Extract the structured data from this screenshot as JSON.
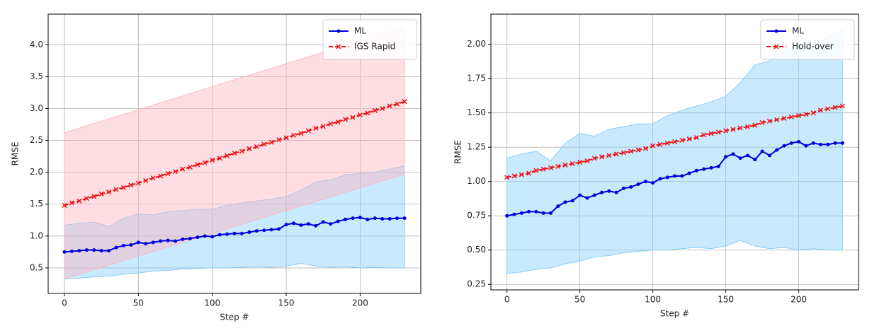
{
  "chart_data": [
    {
      "type": "line",
      "xlabel": "Step #",
      "ylabel": "RMSE",
      "grid": true,
      "legend": "upper right",
      "xlim": [
        -11,
        241
      ],
      "ylim": [
        0.1,
        4.48
      ],
      "xticks": [
        0,
        50,
        100,
        150,
        200
      ],
      "yticks": [
        0.5,
        {
          "value": 1.0,
          "label": "1.0"
        },
        1.5,
        {
          "value": 2.0,
          "label": "2.0"
        },
        2.5,
        {
          "value": 3.0,
          "label": "3.0"
        },
        3.5,
        {
          "value": 4.0,
          "label": "4.0"
        }
      ],
      "x": [
        0,
        5,
        10,
        15,
        20,
        25,
        30,
        35,
        40,
        45,
        50,
        55,
        60,
        65,
        70,
        75,
        80,
        85,
        90,
        95,
        100,
        105,
        110,
        115,
        120,
        125,
        130,
        135,
        140,
        145,
        150,
        155,
        160,
        165,
        170,
        175,
        180,
        185,
        190,
        195,
        200,
        205,
        210,
        215,
        220,
        225,
        230
      ],
      "series": [
        {
          "name": "ML",
          "color": "#0000dd",
          "marker": "dot",
          "values": [
            0.75,
            0.76,
            0.77,
            0.78,
            0.78,
            0.77,
            0.77,
            0.82,
            0.85,
            0.86,
            0.9,
            0.88,
            0.9,
            0.92,
            0.93,
            0.92,
            0.95,
            0.96,
            0.98,
            1.0,
            0.99,
            1.02,
            1.03,
            1.04,
            1.04,
            1.06,
            1.08,
            1.09,
            1.1,
            1.11,
            1.18,
            1.2,
            1.17,
            1.19,
            1.16,
            1.22,
            1.19,
            1.23,
            1.26,
            1.28,
            1.29,
            1.26,
            1.28,
            1.27,
            1.27,
            1.28,
            1.28
          ]
        },
        {
          "name": "IGS Rapid",
          "color": "#ee1111",
          "marker": "x",
          "values": [
            1.48,
            1.52,
            1.55,
            1.59,
            1.62,
            1.66,
            1.69,
            1.73,
            1.76,
            1.8,
            1.83,
            1.87,
            1.91,
            1.94,
            1.98,
            2.01,
            2.05,
            2.08,
            2.12,
            2.15,
            2.19,
            2.22,
            2.26,
            2.3,
            2.33,
            2.37,
            2.4,
            2.44,
            2.47,
            2.51,
            2.54,
            2.58,
            2.61,
            2.65,
            2.69,
            2.72,
            2.76,
            2.79,
            2.83,
            2.86,
            2.9,
            2.93,
            2.97,
            3.0,
            3.04,
            3.07,
            3.11
          ]
        }
      ],
      "bands": [
        {
          "color": "#87cefa",
          "x": [
            0,
            10,
            20,
            30,
            40,
            50,
            60,
            70,
            80,
            90,
            100,
            110,
            120,
            130,
            140,
            150,
            160,
            170,
            180,
            190,
            200,
            210,
            220,
            230
          ],
          "lower": [
            0.33,
            0.34,
            0.36,
            0.37,
            0.4,
            0.42,
            0.45,
            0.46,
            0.48,
            0.49,
            0.5,
            0.5,
            0.51,
            0.52,
            0.51,
            0.53,
            0.57,
            0.53,
            0.51,
            0.52,
            0.5,
            0.51,
            0.5,
            0.5
          ],
          "upper": [
            1.17,
            1.2,
            1.22,
            1.15,
            1.28,
            1.35,
            1.33,
            1.38,
            1.4,
            1.42,
            1.42,
            1.48,
            1.52,
            1.55,
            1.58,
            1.62,
            1.72,
            1.85,
            1.88,
            1.96,
            1.98,
            2.0,
            2.05,
            2.1
          ]
        },
        {
          "color": "#ffb6c1",
          "x": [
            0,
            230
          ],
          "lower": [
            0.33,
            1.97
          ],
          "upper": [
            2.62,
            4.28
          ]
        }
      ]
    },
    {
      "type": "line",
      "xlabel": "Step #",
      "ylabel": "RMSE",
      "grid": true,
      "legend": "upper right",
      "xlim": [
        -11,
        241
      ],
      "ylim": [
        0.21,
        2.22
      ],
      "xticks": [
        0,
        50,
        100,
        150,
        200
      ],
      "yticks": [
        0.25,
        {
          "value": 0.5,
          "label": "0.50"
        },
        0.75,
        {
          "value": 1.0,
          "label": "1.00"
        },
        1.25,
        {
          "value": 1.5,
          "label": "1.50"
        },
        1.75,
        {
          "value": 2.0,
          "label": "2.00"
        }
      ],
      "x": [
        0,
        5,
        10,
        15,
        20,
        25,
        30,
        35,
        40,
        45,
        50,
        55,
        60,
        65,
        70,
        75,
        80,
        85,
        90,
        95,
        100,
        105,
        110,
        115,
        120,
        125,
        130,
        135,
        140,
        145,
        150,
        155,
        160,
        165,
        170,
        175,
        180,
        185,
        190,
        195,
        200,
        205,
        210,
        215,
        220,
        225,
        230
      ],
      "series": [
        {
          "name": "ML",
          "color": "#0000dd",
          "marker": "dot",
          "values": [
            0.75,
            0.76,
            0.77,
            0.78,
            0.78,
            0.77,
            0.77,
            0.82,
            0.85,
            0.86,
            0.9,
            0.88,
            0.9,
            0.92,
            0.93,
            0.92,
            0.95,
            0.96,
            0.98,
            1.0,
            0.99,
            1.02,
            1.03,
            1.04,
            1.04,
            1.06,
            1.08,
            1.09,
            1.1,
            1.11,
            1.18,
            1.2,
            1.17,
            1.19,
            1.16,
            1.22,
            1.19,
            1.23,
            1.26,
            1.28,
            1.29,
            1.26,
            1.28,
            1.27,
            1.27,
            1.28,
            1.28
          ]
        },
        {
          "name": "Hold-over",
          "color": "#ee1111",
          "marker": "x",
          "values": [
            1.03,
            1.04,
            1.05,
            1.06,
            1.08,
            1.09,
            1.1,
            1.11,
            1.12,
            1.13,
            1.14,
            1.15,
            1.17,
            1.18,
            1.19,
            1.2,
            1.21,
            1.22,
            1.23,
            1.24,
            1.26,
            1.27,
            1.28,
            1.29,
            1.3,
            1.31,
            1.32,
            1.34,
            1.35,
            1.36,
            1.37,
            1.38,
            1.39,
            1.4,
            1.41,
            1.43,
            1.44,
            1.45,
            1.46,
            1.47,
            1.48,
            1.49,
            1.5,
            1.52,
            1.53,
            1.54,
            1.55
          ]
        }
      ],
      "bands": [
        {
          "color": "#87cefa",
          "x": [
            0,
            10,
            20,
            30,
            40,
            50,
            60,
            70,
            80,
            90,
            100,
            110,
            120,
            130,
            140,
            150,
            160,
            170,
            180,
            190,
            200,
            210,
            220,
            230
          ],
          "lower": [
            0.33,
            0.34,
            0.36,
            0.37,
            0.4,
            0.42,
            0.45,
            0.46,
            0.48,
            0.49,
            0.5,
            0.5,
            0.51,
            0.52,
            0.51,
            0.53,
            0.57,
            0.53,
            0.51,
            0.52,
            0.5,
            0.51,
            0.5,
            0.5
          ],
          "upper": [
            1.17,
            1.2,
            1.22,
            1.15,
            1.28,
            1.35,
            1.33,
            1.38,
            1.4,
            1.42,
            1.42,
            1.48,
            1.52,
            1.55,
            1.58,
            1.62,
            1.72,
            1.85,
            1.88,
            1.96,
            1.98,
            2.0,
            2.05,
            2.1
          ]
        }
      ]
    }
  ]
}
